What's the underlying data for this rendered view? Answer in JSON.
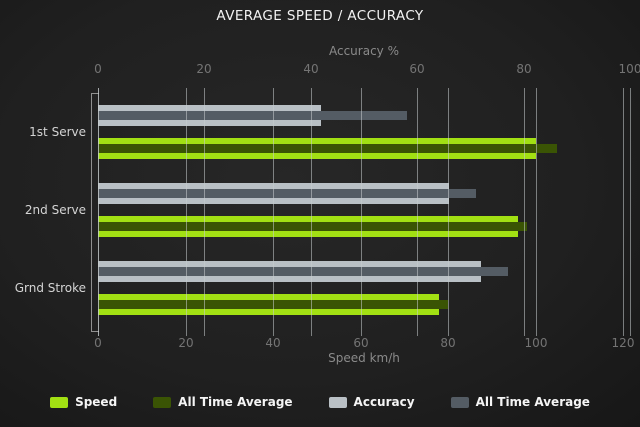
{
  "title": "AVERAGE SPEED / ACCURACY",
  "chart_data": {
    "type": "bar",
    "orientation": "horizontal",
    "grid": true,
    "legend_position": "bottom",
    "categories": [
      "1st Serve",
      "2nd Serve",
      "Grnd Stroke"
    ],
    "axes": {
      "top": {
        "label": "Accuracy %",
        "min": 0,
        "max": 100,
        "ticks": [
          0,
          20,
          40,
          60,
          80,
          100
        ]
      },
      "bottom": {
        "label": "Speed km/h",
        "min": 0,
        "max": 120,
        "ticks": [
          0,
          20,
          40,
          60,
          80,
          100,
          120
        ]
      }
    },
    "series": [
      {
        "name": "Speed",
        "axis": "bottom",
        "color": "#a2e013",
        "values": [
          100,
          96,
          78
        ]
      },
      {
        "name": "All Time Average",
        "axis": "bottom",
        "color": "#3a5404",
        "values": [
          105,
          98,
          80
        ]
      },
      {
        "name": "Accuracy",
        "axis": "top",
        "color": "#b9c0c5",
        "values": [
          42,
          66,
          72
        ]
      },
      {
        "name": "All Time Average",
        "axis": "top",
        "color": "#545c64",
        "values": [
          58,
          71,
          77
        ]
      }
    ],
    "legend": [
      {
        "label": "Speed",
        "color": "#a2e013"
      },
      {
        "label": "All Time Average",
        "color": "#3a5404"
      },
      {
        "label": "Accuracy",
        "color": "#b9c0c5"
      },
      {
        "label": "All Time Average",
        "color": "#545c64"
      }
    ]
  },
  "colors": {
    "background_center": "#272727",
    "background_edge": "#161616",
    "gridline": "#c8cdd0",
    "tick_label": "#747474",
    "axis_title": "#8a8a8a",
    "category_label": "#d4d4d4",
    "title": "#f2f2f2",
    "legend_text": "#f5f5f5"
  }
}
